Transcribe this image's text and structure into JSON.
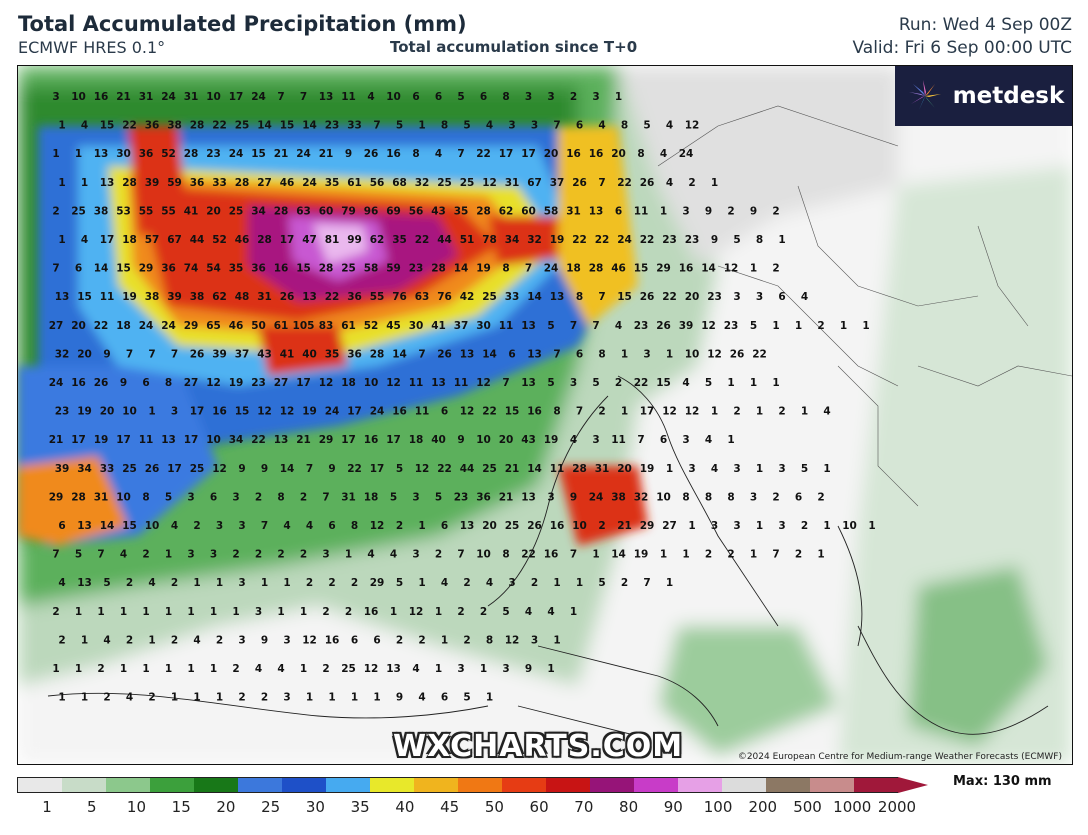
{
  "header": {
    "title": "Total Accumulated Precipitation (mm)",
    "model": "ECMWF HRES 0.1°",
    "subtitle": "Total accumulation since T+0",
    "run": "Run: Wed 4 Sep 00Z",
    "valid": "Valid: Fri 6 Sep 00:00 UTC"
  },
  "logo": {
    "text": "metdesk",
    "icon": "pinwheel-icon"
  },
  "watermark": "WXCHARTS.COM",
  "copyright": "©2024 European Centre for Medium-range Weather Forecasts (ECMWF)",
  "legend": {
    "max_label": "Max: 130 mm",
    "ticks": [
      "1",
      "5",
      "10",
      "15",
      "20",
      "25",
      "30",
      "35",
      "40",
      "45",
      "50",
      "60",
      "70",
      "80",
      "90",
      "100",
      "200",
      "500",
      "1000",
      "2000"
    ],
    "colors": [
      "#e8e8e8",
      "#c8dcc8",
      "#8cc88c",
      "#3ca03c",
      "#187818",
      "#3c78dc",
      "#1e50c8",
      "#46aaf0",
      "#e8e82a",
      "#f0b41e",
      "#f07814",
      "#e63c14",
      "#c81414",
      "#961478",
      "#c83cc8",
      "#e6a0e6",
      "#dcdcdc",
      "#8c7864",
      "#c88c8c",
      "#a0183a"
    ],
    "arrow_color": "#a0183a"
  },
  "map": {
    "values": [
      [
        "3",
        "10",
        "16",
        "21",
        "31",
        "24",
        "31",
        "10",
        "17",
        "24",
        "7",
        "7",
        "13",
        "11",
        "4",
        "10",
        "6",
        "6",
        "5",
        "6",
        "8",
        "3",
        "3",
        "2",
        "3",
        "1"
      ],
      [
        "1",
        "4",
        "15",
        "22",
        "36",
        "38",
        "28",
        "22",
        "25",
        "14",
        "15",
        "14",
        "23",
        "33",
        "7",
        "5",
        "1",
        "8",
        "5",
        "4",
        "3",
        "3",
        "7",
        "6",
        "4",
        "8",
        "5",
        "4",
        "12"
      ],
      [
        "1",
        "1",
        "13",
        "30",
        "36",
        "52",
        "28",
        "23",
        "24",
        "15",
        "21",
        "24",
        "21",
        "9",
        "26",
        "16",
        "8",
        "4",
        "7",
        "22",
        "17",
        "17",
        "20",
        "16",
        "16",
        "20",
        "8",
        "4",
        "24"
      ],
      [
        "1",
        "1",
        "13",
        "28",
        "39",
        "59",
        "36",
        "33",
        "28",
        "27",
        "46",
        "24",
        "35",
        "61",
        "56",
        "68",
        "32",
        "25",
        "25",
        "12",
        "31",
        "67",
        "37",
        "26",
        "7",
        "22",
        "26",
        "4",
        "2",
        "1"
      ],
      [
        "2",
        "25",
        "38",
        "53",
        "55",
        "55",
        "41",
        "20",
        "25",
        "34",
        "28",
        "63",
        "60",
        "79",
        "96",
        "69",
        "56",
        "43",
        "35",
        "28",
        "62",
        "60",
        "58",
        "31",
        "13",
        "6",
        "11",
        "1",
        "3",
        "9",
        "2",
        "9",
        "2"
      ],
      [
        "1",
        "4",
        "17",
        "18",
        "57",
        "67",
        "44",
        "52",
        "46",
        "28",
        "17",
        "47",
        "81",
        "99",
        "62",
        "35",
        "22",
        "44",
        "51",
        "78",
        "34",
        "32",
        "19",
        "22",
        "22",
        "24",
        "22",
        "23",
        "23",
        "9",
        "5",
        "8",
        "1"
      ],
      [
        "7",
        "6",
        "14",
        "15",
        "29",
        "36",
        "74",
        "54",
        "35",
        "36",
        "16",
        "15",
        "28",
        "25",
        "58",
        "59",
        "23",
        "28",
        "14",
        "19",
        "8",
        "7",
        "24",
        "18",
        "28",
        "46",
        "15",
        "29",
        "16",
        "14",
        "12",
        "1",
        "2"
      ],
      [
        "13",
        "15",
        "11",
        "19",
        "38",
        "39",
        "38",
        "62",
        "48",
        "31",
        "26",
        "13",
        "22",
        "36",
        "55",
        "76",
        "63",
        "76",
        "42",
        "25",
        "33",
        "14",
        "13",
        "8",
        "7",
        "15",
        "26",
        "22",
        "20",
        "23",
        "3",
        "3",
        "6",
        "4"
      ],
      [
        "27",
        "20",
        "22",
        "18",
        "24",
        "24",
        "29",
        "65",
        "46",
        "50",
        "61",
        "105",
        "83",
        "61",
        "52",
        "45",
        "30",
        "41",
        "37",
        "30",
        "11",
        "13",
        "5",
        "7",
        "7",
        "4",
        "23",
        "26",
        "39",
        "12",
        "23",
        "5",
        "1",
        "1",
        "2",
        "1",
        "1"
      ],
      [
        "32",
        "20",
        "9",
        "7",
        "7",
        "7",
        "26",
        "39",
        "37",
        "43",
        "41",
        "40",
        "35",
        "36",
        "28",
        "14",
        "7",
        "26",
        "13",
        "14",
        "6",
        "13",
        "7",
        "6",
        "8",
        "1",
        "3",
        "1",
        "10",
        "12",
        "26",
        "22"
      ],
      [
        "24",
        "16",
        "26",
        "9",
        "6",
        "8",
        "27",
        "12",
        "19",
        "23",
        "27",
        "17",
        "12",
        "18",
        "10",
        "12",
        "11",
        "13",
        "11",
        "12",
        "7",
        "13",
        "5",
        "3",
        "5",
        "2",
        "22",
        "15",
        "4",
        "5",
        "1",
        "1",
        "1"
      ],
      [
        "23",
        "19",
        "20",
        "10",
        "1",
        "3",
        "17",
        "16",
        "15",
        "12",
        "12",
        "19",
        "24",
        "17",
        "24",
        "16",
        "11",
        "6",
        "12",
        "22",
        "15",
        "16",
        "8",
        "7",
        "2",
        "1",
        "17",
        "12",
        "12",
        "1",
        "2",
        "1",
        "2",
        "1",
        "4"
      ],
      [
        "21",
        "17",
        "19",
        "17",
        "11",
        "13",
        "17",
        "10",
        "34",
        "22",
        "13",
        "21",
        "29",
        "17",
        "16",
        "17",
        "18",
        "40",
        "9",
        "10",
        "20",
        "43",
        "19",
        "4",
        "3",
        "11",
        "7",
        "6",
        "3",
        "4",
        "1"
      ],
      [
        "39",
        "34",
        "33",
        "25",
        "26",
        "17",
        "25",
        "12",
        "9",
        "9",
        "14",
        "7",
        "9",
        "22",
        "17",
        "5",
        "12",
        "22",
        "44",
        "25",
        "21",
        "14",
        "11",
        "28",
        "31",
        "20",
        "19",
        "1",
        "3",
        "4",
        "3",
        "1",
        "3",
        "5",
        "1"
      ],
      [
        "29",
        "28",
        "31",
        "10",
        "8",
        "5",
        "3",
        "6",
        "3",
        "2",
        "8",
        "2",
        "7",
        "31",
        "18",
        "5",
        "3",
        "5",
        "23",
        "36",
        "21",
        "13",
        "3",
        "9",
        "24",
        "38",
        "32",
        "10",
        "8",
        "8",
        "8",
        "3",
        "2",
        "6",
        "2"
      ],
      [
        "6",
        "13",
        "14",
        "15",
        "10",
        "4",
        "2",
        "3",
        "3",
        "7",
        "4",
        "4",
        "6",
        "8",
        "12",
        "2",
        "1",
        "6",
        "13",
        "20",
        "25",
        "26",
        "16",
        "10",
        "2",
        "21",
        "29",
        "27",
        "1",
        "3",
        "3",
        "1",
        "3",
        "2",
        "1",
        "10",
        "1"
      ],
      [
        "7",
        "5",
        "7",
        "4",
        "2",
        "1",
        "3",
        "3",
        "2",
        "2",
        "2",
        "2",
        "3",
        "1",
        "4",
        "4",
        "3",
        "2",
        "7",
        "10",
        "8",
        "22",
        "16",
        "7",
        "1",
        "14",
        "19",
        "1",
        "1",
        "2",
        "2",
        "1",
        "7",
        "2",
        "1"
      ],
      [
        "4",
        "13",
        "5",
        "2",
        "4",
        "2",
        "1",
        "1",
        "3",
        "1",
        "1",
        "2",
        "2",
        "2",
        "29",
        "5",
        "1",
        "4",
        "2",
        "4",
        "3",
        "2",
        "1",
        "1",
        "5",
        "2",
        "7",
        "1"
      ],
      [
        "2",
        "1",
        "1",
        "1",
        "1",
        "1",
        "1",
        "1",
        "1",
        "3",
        "1",
        "1",
        "2",
        "2",
        "16",
        "1",
        "12",
        "1",
        "2",
        "2",
        "5",
        "4",
        "4",
        "1"
      ],
      [
        "2",
        "1",
        "4",
        "2",
        "1",
        "2",
        "4",
        "2",
        "3",
        "9",
        "3",
        "12",
        "16",
        "6",
        "6",
        "2",
        "2",
        "1",
        "2",
        "8",
        "12",
        "3",
        "1"
      ],
      [
        "1",
        "1",
        "2",
        "1",
        "1",
        "1",
        "1",
        "1",
        "2",
        "4",
        "4",
        "1",
        "2",
        "25",
        "12",
        "13",
        "4",
        "1",
        "3",
        "1",
        "3",
        "9",
        "1"
      ],
      [
        "1",
        "1",
        "2",
        "4",
        "2",
        "1",
        "1",
        "1",
        "2",
        "2",
        "3",
        "1",
        "1",
        "1",
        "1",
        "9",
        "4",
        "6",
        "5",
        "1"
      ]
    ]
  }
}
